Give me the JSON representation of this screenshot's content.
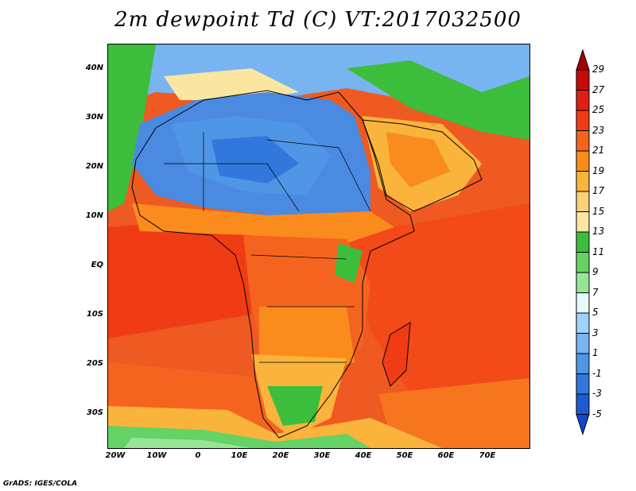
{
  "title": "2m dewpoint Td (C) VT:2017032500",
  "footer": "GrADS: IGES/COLA",
  "latitude_labels": [
    "40N",
    "30N",
    "20N",
    "10N",
    "EQ",
    "10S",
    "20S",
    "30S"
  ],
  "longitude_labels": [
    "20W",
    "10W",
    "0",
    "10E",
    "20E",
    "30E",
    "40E",
    "50E",
    "60E",
    "70E"
  ],
  "colorbar": {
    "labels": [
      "29",
      "27",
      "25",
      "23",
      "21",
      "19",
      "17",
      "15",
      "13",
      "11",
      "9",
      "7",
      "5",
      "3",
      "1",
      "-1",
      "-3",
      "-5"
    ],
    "colors": [
      "#a50000",
      "#c80a0a",
      "#e11e14",
      "#f03c14",
      "#f5641e",
      "#fa8c1e",
      "#fab43c",
      "#fad278",
      "#fae6a0",
      "#3cbe3c",
      "#64d264",
      "#96e696",
      "#e6fafa",
      "#a0d2fa",
      "#78b4f0",
      "#5096e6",
      "#3278dc",
      "#1e5ad2",
      "#1446c8"
    ]
  },
  "colors": {
    "ocean_warm": "#e8501f",
    "ocean_hot": "#f03c14",
    "sahara_dry": "#4a8ae0",
    "humid_green": "#3cbe3c",
    "transition_orange": "#fa8c1e"
  }
}
